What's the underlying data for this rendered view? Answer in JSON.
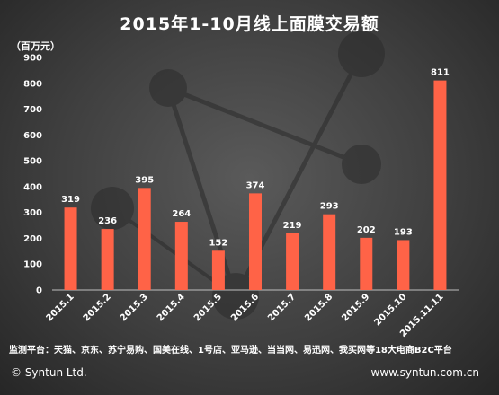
{
  "chart_data": {
    "type": "bar",
    "title": "2015年1-10月线上面膜交易额",
    "ylabel": "（百万元）",
    "categories": [
      "2015.1",
      "2015.2",
      "2015.3",
      "2015.4",
      "2015.5",
      "2015.6",
      "2015.7",
      "2015.8",
      "2015.9",
      "2015.10",
      "2015.11.11"
    ],
    "values": [
      319,
      236,
      395,
      264,
      152,
      374,
      219,
      293,
      202,
      193,
      811
    ],
    "ylim": [
      0,
      900
    ],
    "yticks": [
      0,
      100,
      200,
      300,
      400,
      500,
      600,
      700,
      800,
      900
    ],
    "grid": false,
    "bar_color": "#ff6347"
  },
  "source_note": "监测平台：天猫、京东、苏宁易购、国美在线、1号店、亚马逊、当当网、易迅网、我买网等18大电商B2C平台",
  "footer": {
    "copyright": "© Syntun Ltd.",
    "website": "www.syntun.com.cn"
  },
  "colors": {
    "bar": "#ff6347",
    "axis": "#bfbfbf",
    "text": "#ffffff"
  }
}
